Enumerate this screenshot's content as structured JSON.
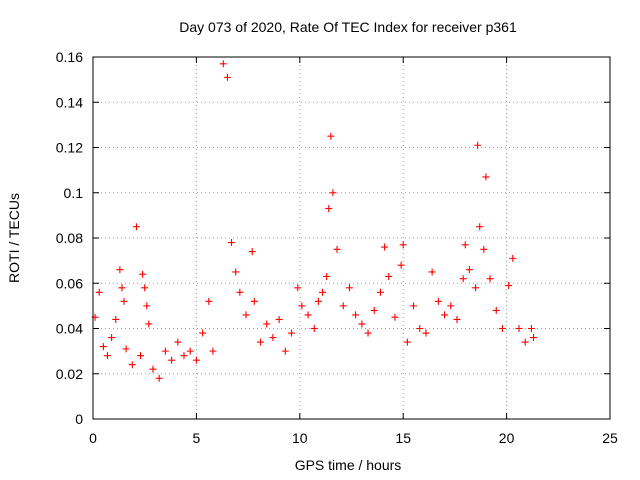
{
  "chart_data": {
    "type": "scatter",
    "title": "Day 073 of 2020, Rate Of TEC Index for receiver p361",
    "xlabel": "GPS time / hours",
    "ylabel": "ROTI / TECUs",
    "xlim": [
      0,
      25
    ],
    "ylim": [
      0,
      0.16
    ],
    "x_ticks": [
      0,
      5,
      10,
      15,
      20,
      25
    ],
    "x_tick_labels": [
      "0",
      "5",
      "10",
      "15",
      "20",
      "25"
    ],
    "y_ticks": [
      0,
      0.02,
      0.04,
      0.06,
      0.08,
      0.1,
      0.12,
      0.14,
      0.16
    ],
    "y_tick_labels": [
      "0",
      "0.02",
      "0.04",
      "0.06",
      "0.08",
      "0.1",
      "0.12",
      "0.14",
      "0.16"
    ],
    "grid": true,
    "marker": "+",
    "series": [
      {
        "name": "ROTI",
        "color": "#ff0000",
        "x": [
          0.1,
          0.3,
          0.5,
          0.7,
          0.9,
          1.1,
          1.3,
          1.4,
          1.5,
          1.6,
          1.9,
          2.1,
          2.3,
          2.4,
          2.5,
          2.6,
          2.7,
          2.9,
          3.2,
          3.5,
          3.8,
          4.1,
          4.4,
          4.7,
          5.0,
          5.3,
          5.6,
          5.8,
          6.3,
          6.5,
          6.7,
          6.9,
          7.1,
          7.4,
          7.7,
          7.8,
          8.1,
          8.4,
          8.7,
          9.0,
          9.3,
          9.6,
          9.9,
          10.1,
          10.4,
          10.7,
          10.9,
          11.1,
          11.3,
          11.4,
          11.5,
          11.6,
          11.8,
          12.1,
          12.4,
          12.7,
          13.0,
          13.3,
          13.6,
          13.9,
          14.1,
          14.3,
          14.6,
          14.9,
          15.0,
          15.2,
          15.5,
          15.8,
          16.1,
          16.4,
          16.7,
          17.0,
          17.3,
          17.6,
          17.9,
          18.0,
          18.2,
          18.5,
          18.6,
          18.7,
          18.9,
          19.0,
          19.2,
          19.5,
          19.8,
          20.1,
          20.3,
          20.6,
          20.9,
          21.2,
          21.3
        ],
        "y": [
          0.045,
          0.056,
          0.032,
          0.028,
          0.036,
          0.044,
          0.066,
          0.058,
          0.052,
          0.031,
          0.024,
          0.085,
          0.028,
          0.064,
          0.058,
          0.05,
          0.042,
          0.022,
          0.018,
          0.03,
          0.026,
          0.034,
          0.028,
          0.03,
          0.026,
          0.038,
          0.052,
          0.03,
          0.157,
          0.151,
          0.078,
          0.065,
          0.056,
          0.046,
          0.074,
          0.052,
          0.034,
          0.042,
          0.036,
          0.044,
          0.03,
          0.038,
          0.058,
          0.05,
          0.046,
          0.04,
          0.052,
          0.056,
          0.063,
          0.093,
          0.125,
          0.1,
          0.075,
          0.05,
          0.058,
          0.046,
          0.042,
          0.038,
          0.048,
          0.056,
          0.076,
          0.063,
          0.045,
          0.068,
          0.077,
          0.034,
          0.05,
          0.04,
          0.038,
          0.065,
          0.052,
          0.046,
          0.05,
          0.044,
          0.062,
          0.077,
          0.066,
          0.058,
          0.121,
          0.085,
          0.075,
          0.107,
          0.062,
          0.048,
          0.04,
          0.059,
          0.071,
          0.04,
          0.034,
          0.04,
          0.036
        ]
      }
    ]
  }
}
